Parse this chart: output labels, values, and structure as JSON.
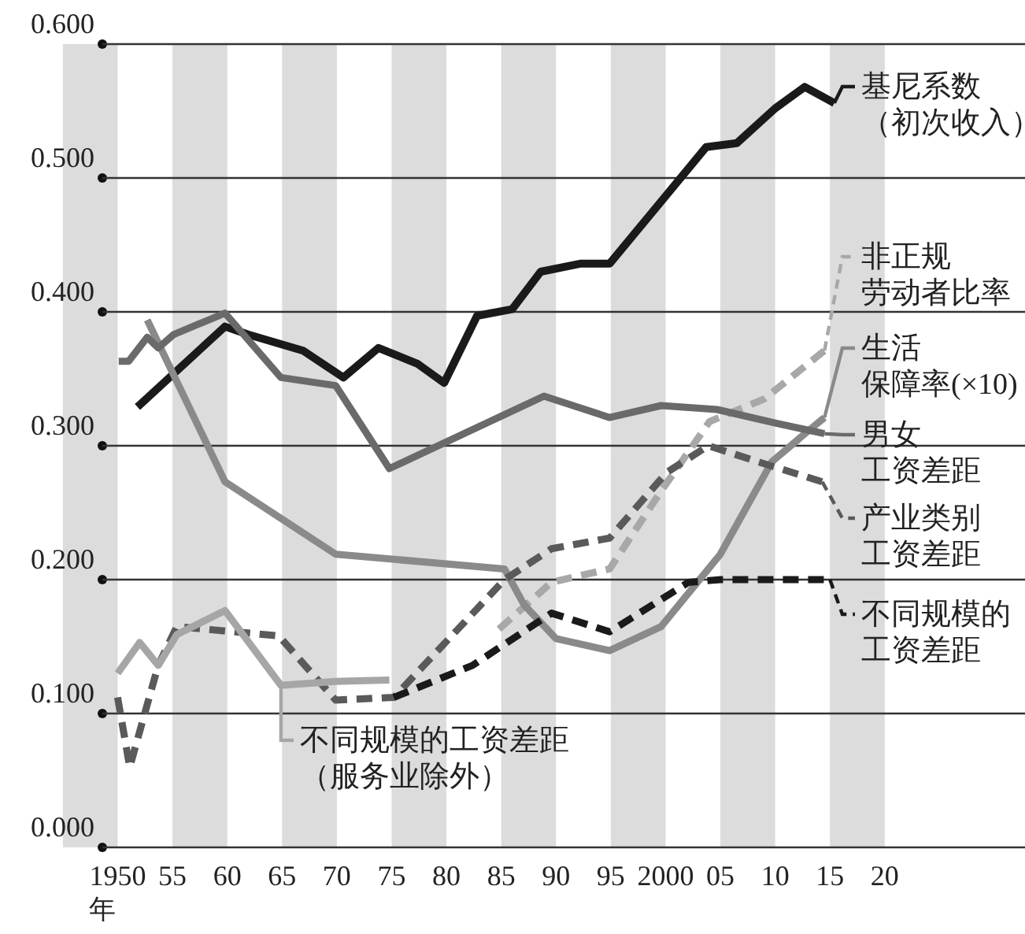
{
  "chart_data": {
    "type": "line",
    "xlabel": "年",
    "legend": "right",
    "grid": "y",
    "line_style": "solid",
    "marker": "none",
    "xlim": [
      1948.6,
      2032.8
    ],
    "ylim": [
      0,
      0.6
    ],
    "xticks": [
      {
        "value": 1950,
        "label": "1950"
      },
      {
        "value": 1955,
        "label": "55"
      },
      {
        "value": 1960,
        "label": "60"
      },
      {
        "value": 1965,
        "label": "65"
      },
      {
        "value": 1970,
        "label": "70"
      },
      {
        "value": 1975,
        "label": "75"
      },
      {
        "value": 1980,
        "label": "80"
      },
      {
        "value": 1985,
        "label": "85"
      },
      {
        "value": 1990,
        "label": "90"
      },
      {
        "value": 1995,
        "label": "95"
      },
      {
        "value": 2000,
        "label": "2000"
      },
      {
        "value": 2005,
        "label": "05"
      },
      {
        "value": 2010,
        "label": "10"
      },
      {
        "value": 2015,
        "label": "15"
      },
      {
        "value": 2020,
        "label": "20"
      }
    ],
    "yticks": [
      {
        "value": 0,
        "label": "0.000"
      },
      {
        "value": 0.1,
        "label": "0.100"
      },
      {
        "value": 0.2,
        "label": "0.200"
      },
      {
        "value": 0.3,
        "label": "0.300"
      },
      {
        "value": 0.4,
        "label": "0.400"
      },
      {
        "value": 0.5,
        "label": "0.500"
      },
      {
        "value": 0.6,
        "label": "0.600"
      }
    ],
    "bands": [
      {
        "axis": "x",
        "from": 1945,
        "to": 1950,
        "color": "#dcdcdc"
      },
      {
        "axis": "x",
        "from": 1955,
        "to": 1960,
        "color": "#dcdcdc"
      },
      {
        "axis": "x",
        "from": 1965,
        "to": 1970,
        "color": "#dcdcdc"
      },
      {
        "axis": "x",
        "from": 1975,
        "to": 1980,
        "color": "#dcdcdc"
      },
      {
        "axis": "x",
        "from": 1985,
        "to": 1990,
        "color": "#dcdcdc"
      },
      {
        "axis": "x",
        "from": 1995,
        "to": 2000,
        "color": "#dcdcdc"
      },
      {
        "axis": "x",
        "from": 2005,
        "to": 2010,
        "color": "#dcdcdc"
      },
      {
        "axis": "x",
        "from": 2015,
        "to": 2020,
        "color": "#dcdcdc"
      }
    ],
    "series": [
      {
        "name": "基尼系数（初次收入）",
        "color": "#1a1a1a",
        "x": [
          1951.8,
          1959.8,
          1961.9,
          1966.9,
          1970.6,
          1973.8,
          1977.4,
          1979.8,
          1982.8,
          1986.0,
          1988.6,
          1992.2,
          1994.9,
          2003.7,
          2006.5,
          2010.0,
          2012.7,
          2015.4
        ],
        "values": [
          0.329,
          0.389,
          0.383,
          0.371,
          0.351,
          0.373,
          0.361,
          0.347,
          0.397,
          0.402,
          0.43,
          0.436,
          0.436,
          0.523,
          0.526,
          0.552,
          0.568,
          0.556
        ]
      },
      {
        "name": "非正规劳动者比率",
        "color": "#a8a8a8",
        "line_style": "dashed",
        "x": [
          1984.8,
          1989.6,
          1994.9,
          1999.5,
          2004.0,
          2009.0,
          2014.5
        ],
        "values": [
          0.163,
          0.198,
          0.208,
          0.265,
          0.318,
          0.335,
          0.371
        ]
      },
      {
        "name": "生活保障率(×10)",
        "color": "#8a8a8a",
        "x": [
          1952.7,
          1959.8,
          1969.9,
          1985.3,
          1987.1,
          1990.0,
          1994.9,
          1999.6,
          2005.0,
          2009.7,
          2013.0,
          2014.5
        ],
        "values": [
          0.394,
          0.273,
          0.219,
          0.208,
          0.181,
          0.156,
          0.147,
          0.165,
          0.219,
          0.288,
          0.311,
          0.321
        ]
      },
      {
        "name": "男女工资差距",
        "color": "#6a6a6a",
        "x": [
          1950.1,
          1951.0,
          1952.7,
          1953.7,
          1955.1,
          1959.8,
          1964.9,
          1969.9,
          1974.8,
          1988.9,
          1994.9,
          1999.6,
          2004.7,
          2010.0,
          2014.5
        ],
        "values": [
          0.363,
          0.363,
          0.381,
          0.373,
          0.383,
          0.399,
          0.351,
          0.345,
          0.283,
          0.337,
          0.321,
          0.33,
          0.327,
          0.317,
          0.309
        ]
      },
      {
        "name": "产业类别工资差距",
        "color": "#5a5a5a",
        "line_style": "dashed",
        "x": [
          1950.0,
          1951.1,
          1953.7,
          1955.4,
          1964.7,
          1969.9,
          1975.2,
          1985.3,
          1989.6,
          1994.9,
          2000.1,
          2003.9,
          2009.2,
          2014.3
        ],
        "values": [
          0.112,
          0.06,
          0.136,
          0.165,
          0.158,
          0.11,
          0.112,
          0.2,
          0.223,
          0.231,
          0.28,
          0.3,
          0.286,
          0.273
        ]
      },
      {
        "name": "不同规模的工资差距",
        "color": "#1a1a1a",
        "line_style": "dashed",
        "x": [
          1975.2,
          1982.4,
          1989.6,
          1994.9,
          2002.1,
          2005.0,
          2015.0
        ],
        "values": [
          0.112,
          0.136,
          0.175,
          0.161,
          0.198,
          0.2,
          0.2
        ]
      },
      {
        "name": "不同规模的工资差距（服务业除外）",
        "color": "#a6a6a6",
        "x": [
          1950.0,
          1952.0,
          1953.7,
          1955.4,
          1959.8,
          1964.9,
          1969.9,
          1974.8
        ],
        "values": [
          0.13,
          0.153,
          0.136,
          0.159,
          0.177,
          0.121,
          0.124,
          0.125
        ]
      }
    ]
  }
}
